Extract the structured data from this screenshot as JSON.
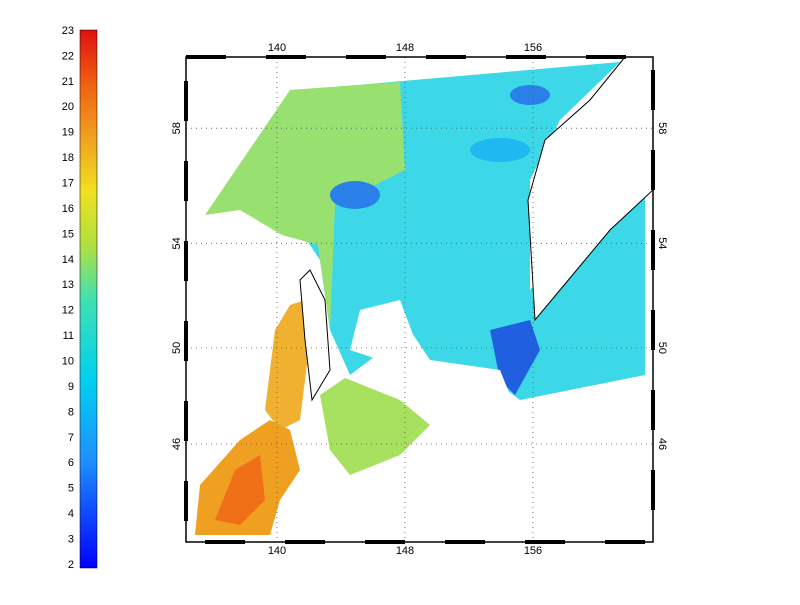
{
  "colorbar": {
    "labels": [
      2,
      3,
      4,
      5,
      6,
      7,
      8,
      9,
      10,
      11,
      12,
      13,
      14,
      15,
      16,
      17,
      18,
      19,
      20,
      21,
      22,
      23
    ]
  },
  "map": {
    "lon_ticks": [
      140,
      148,
      156
    ],
    "lat_ticks": [
      46,
      50,
      54,
      58
    ]
  }
}
